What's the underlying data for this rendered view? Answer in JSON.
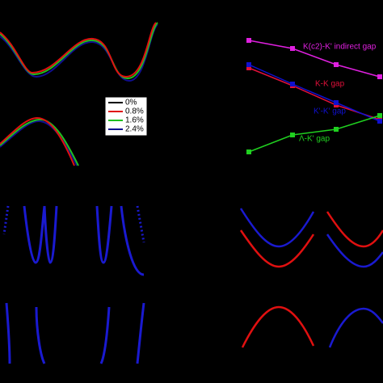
{
  "chart_data": {
    "type": "line",
    "xlim": [
      0,
      3
    ],
    "ylim": [
      0,
      160
    ],
    "x": [
      0,
      1,
      2,
      3
    ],
    "series": [
      {
        "name": "K(c2)-K' indirect gap",
        "color": "#e020e0",
        "values": [
          150,
          140,
          120,
          105
        ]
      },
      {
        "name": "K-K gap",
        "color": "#e0103a",
        "values": [
          116,
          94,
          70,
          52
        ]
      },
      {
        "name": "K'-K' gap",
        "color": "#1010d0",
        "values": [
          120,
          96,
          73,
          50
        ]
      },
      {
        "name": "Λ-K' gap",
        "color": "#20d020",
        "values": [
          12,
          33,
          40,
          57
        ]
      }
    ]
  },
  "strain_legend": {
    "entries": [
      {
        "label": "0%",
        "color": "#000000"
      },
      {
        "label": "0.8%",
        "color": "#e01010"
      },
      {
        "label": "1.6%",
        "color": "#20c020"
      },
      {
        "label": "2.4%",
        "color": "#101090"
      }
    ]
  }
}
